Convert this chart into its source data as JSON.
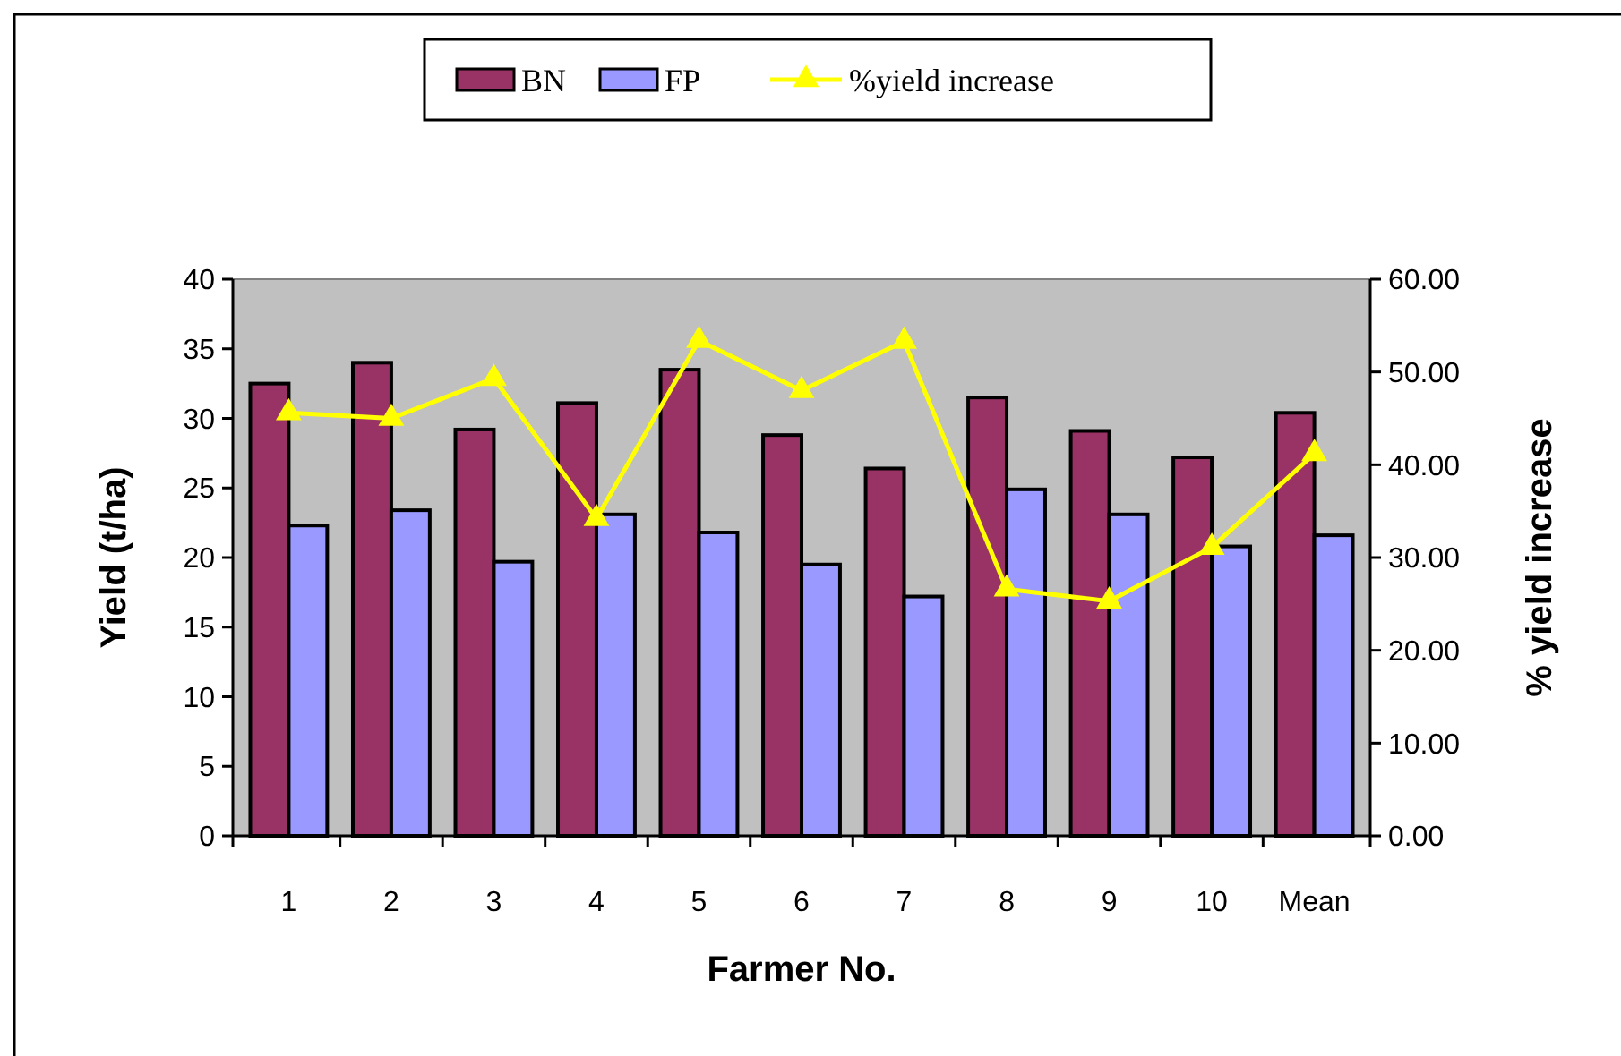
{
  "chart_data": {
    "type": "bar",
    "xlabel": "Farmer No.",
    "ylabel": "Yield (t/ha)",
    "y2label": "% yield increase",
    "categories": [
      "1",
      "2",
      "3",
      "4",
      "5",
      "6",
      "7",
      "8",
      "9",
      "10",
      "Mean"
    ],
    "series": [
      {
        "name": "BN",
        "color": "#993366",
        "values": [
          32.5,
          34.0,
          29.2,
          31.1,
          33.5,
          28.8,
          26.4,
          31.5,
          29.1,
          27.2,
          30.4
        ]
      },
      {
        "name": "FP",
        "color": "#9999ff",
        "values": [
          22.3,
          23.4,
          19.7,
          23.1,
          21.8,
          19.5,
          17.2,
          24.9,
          23.1,
          20.8,
          21.6
        ]
      },
      {
        "name": "%yield increase",
        "type": "line",
        "axis": "y2",
        "color": "#ffff00",
        "marker": "triangle",
        "values": [
          45.6,
          45.0,
          49.3,
          34.2,
          53.4,
          48.0,
          53.3,
          26.6,
          25.3,
          31.1,
          41.2
        ]
      }
    ],
    "ylim": [
      0,
      40
    ],
    "yticks": [
      0,
      5,
      10,
      15,
      20,
      25,
      30,
      35,
      40
    ],
    "y2lim": [
      0,
      60
    ],
    "y2ticks": [
      {
        "value": 0,
        "label": "0.00"
      },
      {
        "value": 10,
        "label": "10.00"
      },
      {
        "value": 20,
        "label": "20.00"
      },
      {
        "value": 30,
        "label": "30.00"
      },
      {
        "value": 40,
        "label": "40.00"
      },
      {
        "value": 50,
        "label": "50.00"
      },
      {
        "value": 60,
        "label": "60.00"
      }
    ],
    "grid": false,
    "legend": "top"
  }
}
